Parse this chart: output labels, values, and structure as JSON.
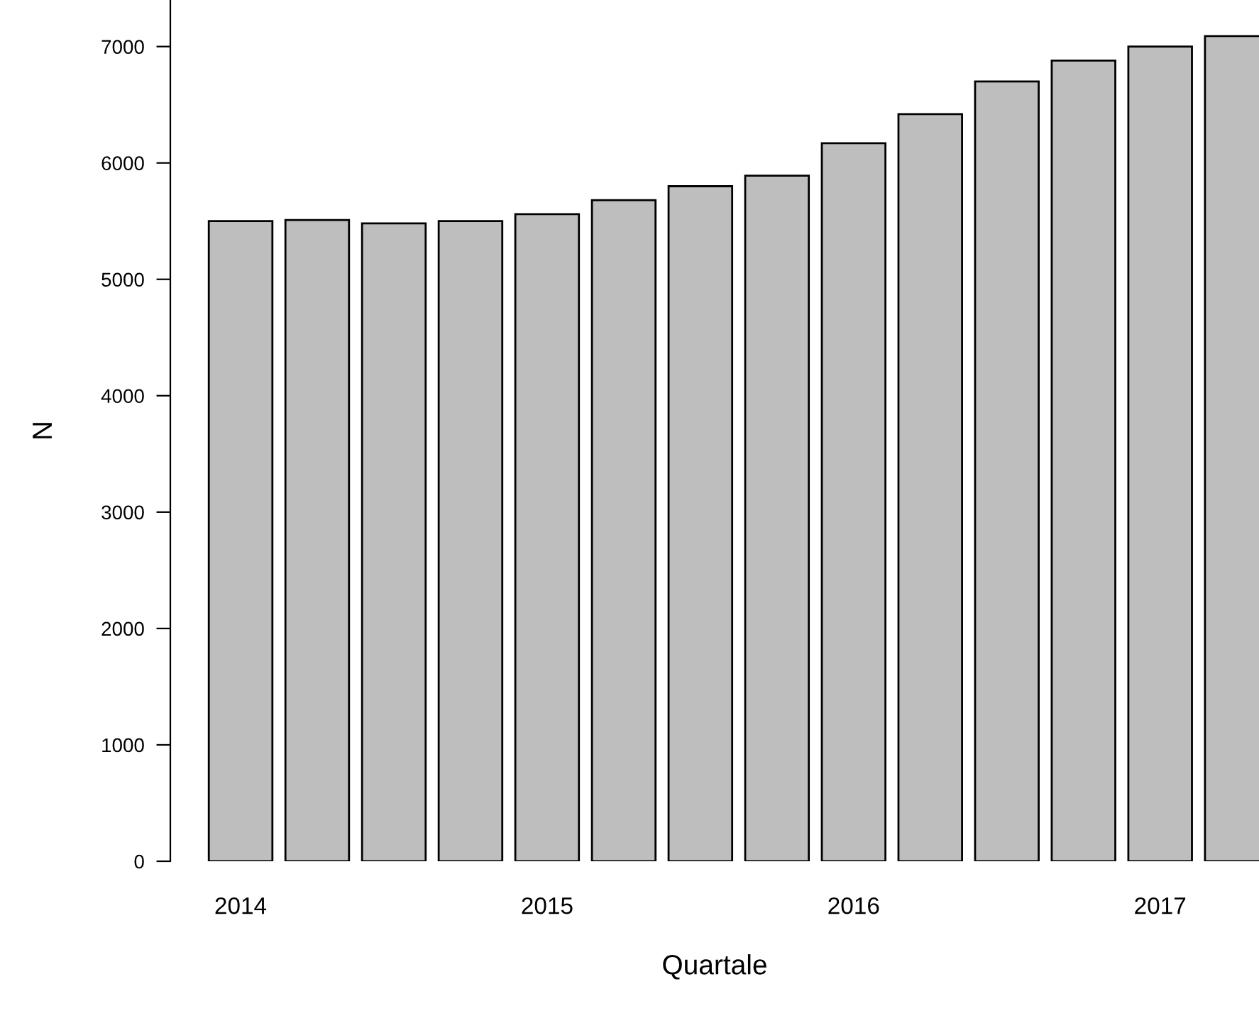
{
  "chart_data": {
    "type": "bar",
    "xlabel": "Quartale",
    "ylabel": "N",
    "categories": [
      "2014",
      null,
      null,
      null,
      "2015",
      null,
      null,
      null,
      "2016",
      null,
      null,
      null,
      "2017",
      null
    ],
    "values": [
      5500,
      5510,
      5480,
      5500,
      5560,
      5680,
      5800,
      5890,
      6170,
      6420,
      6700,
      6880,
      7000,
      7090
    ],
    "color": "#bebebe",
    "ylim": [
      0,
      7400
    ],
    "yticks": [
      0,
      1000,
      2000,
      3000,
      4000,
      5000,
      6000,
      7000
    ],
    "grid": false
  }
}
